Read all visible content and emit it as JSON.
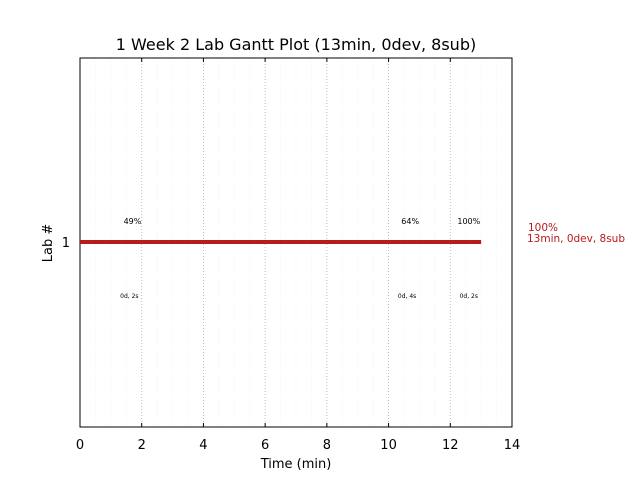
{
  "chart_data": {
    "type": "gantt",
    "title": "1 Week 2 Lab Gantt Plot (13min, 0dev, 8sub)",
    "xlabel": "Time (min)",
    "ylabel": "Lab #",
    "xlim": [
      0,
      14
    ],
    "x_ticks": [
      "0",
      "2",
      "4",
      "6",
      "8",
      "10",
      "12",
      "14"
    ],
    "y_ticks": [
      "1"
    ],
    "grid": true,
    "bar_color": "#b71c1c",
    "bars": [
      {
        "lab": 1,
        "start": 0,
        "end": 13
      }
    ],
    "annotations_above": [
      {
        "x": 1.7,
        "text": "49%"
      },
      {
        "x": 10.7,
        "text": "64%"
      },
      {
        "x": 12.6,
        "text": "100%"
      }
    ],
    "annotations_below": [
      {
        "x": 1.6,
        "text": "0d, 2s"
      },
      {
        "x": 10.6,
        "text": "0d, 4s"
      },
      {
        "x": 12.6,
        "text": "0d, 2s"
      }
    ],
    "summary": {
      "line1": "100%",
      "line2": "13min, 0dev, 8sub"
    }
  }
}
